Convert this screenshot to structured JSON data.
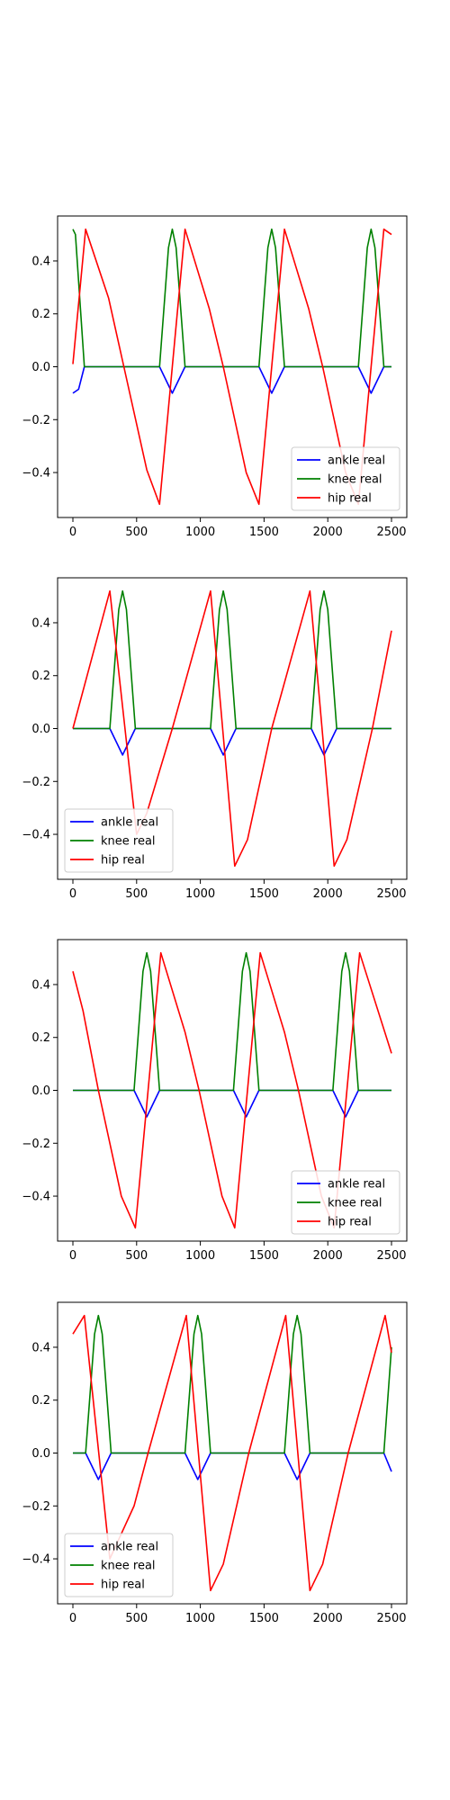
{
  "chart_data": [
    {
      "type": "line",
      "xlim": [
        -120,
        2620
      ],
      "ylim": [
        -0.57,
        0.57
      ],
      "xticks": [
        0,
        500,
        1000,
        1500,
        2000,
        2500
      ],
      "xtick_labels": [
        "0",
        "500",
        "1000",
        "1500",
        "2000",
        "2500"
      ],
      "yticks": [
        -0.4,
        -0.2,
        0.0,
        0.2,
        0.4
      ],
      "ytick_labels": [
        "−0.4",
        "−0.2",
        "0.0",
        "0.2",
        "0.4"
      ],
      "grid": false,
      "legend_loc": "lower right",
      "series": [
        {
          "name": "ankle real",
          "color": "#0000ff",
          "x": [
            0,
            45,
            90,
            680,
            720,
            780,
            840,
            880,
            1460,
            1500,
            1560,
            1620,
            1660,
            2240,
            2280,
            2340,
            2400,
            2440,
            2500
          ],
          "y": [
            -0.1,
            -0.085,
            0,
            0,
            -0.04,
            -0.1,
            -0.04,
            0,
            0,
            -0.04,
            -0.1,
            -0.04,
            0,
            0,
            -0.04,
            -0.1,
            -0.04,
            0,
            0
          ]
        },
        {
          "name": "knee real",
          "color": "#008000",
          "x": [
            0,
            20,
            90,
            680,
            750,
            780,
            810,
            880,
            1460,
            1530,
            1560,
            1590,
            1660,
            2240,
            2310,
            2340,
            2370,
            2440,
            2500
          ],
          "y": [
            0.52,
            0.5,
            0,
            0,
            0.45,
            0.52,
            0.45,
            0,
            0,
            0.45,
            0.52,
            0.45,
            0,
            0,
            0.45,
            0.52,
            0.45,
            0,
            0
          ]
        },
        {
          "name": "hip real",
          "color": "#ff0000",
          "x": [
            0,
            100,
            280,
            400,
            580,
            680,
            880,
            1070,
            1180,
            1360,
            1460,
            1660,
            1850,
            1960,
            2140,
            2240,
            2440,
            2500
          ],
          "y": [
            0.01,
            0.52,
            0.26,
            0.0,
            -0.39,
            -0.52,
            0.52,
            0.22,
            0.0,
            -0.4,
            -0.52,
            0.52,
            0.22,
            0.0,
            -0.4,
            -0.52,
            0.52,
            0.5
          ]
        }
      ]
    },
    {
      "type": "line",
      "xlim": [
        -120,
        2620
      ],
      "ylim": [
        -0.57,
        0.57
      ],
      "xticks": [
        0,
        500,
        1000,
        1500,
        2000,
        2500
      ],
      "xtick_labels": [
        "0",
        "500",
        "1000",
        "1500",
        "2000",
        "2500"
      ],
      "yticks": [
        -0.4,
        -0.2,
        0.0,
        0.2,
        0.4
      ],
      "ytick_labels": [
        "−0.4",
        "−0.2",
        "0.0",
        "0.2",
        "0.4"
      ],
      "grid": false,
      "legend_loc": "lower left",
      "series": [
        {
          "name": "ankle real",
          "color": "#0000ff",
          "x": [
            0,
            290,
            330,
            390,
            450,
            490,
            1080,
            1120,
            1180,
            1240,
            1280,
            1870,
            1910,
            1970,
            2030,
            2070,
            2500
          ],
          "y": [
            0,
            0,
            -0.04,
            -0.1,
            -0.04,
            0,
            0,
            -0.04,
            -0.1,
            -0.04,
            0,
            0,
            -0.04,
            -0.1,
            -0.04,
            0,
            0
          ]
        },
        {
          "name": "knee real",
          "color": "#008000",
          "x": [
            0,
            290,
            360,
            390,
            420,
            490,
            1080,
            1150,
            1180,
            1210,
            1280,
            1870,
            1940,
            1970,
            2000,
            2070,
            2500
          ],
          "y": [
            0,
            0,
            0.45,
            0.52,
            0.45,
            0,
            0,
            0.45,
            0.52,
            0.45,
            0,
            0,
            0.45,
            0.52,
            0.45,
            0,
            0
          ]
        },
        {
          "name": "hip real",
          "color": "#ff0000",
          "x": [
            0,
            290,
            500,
            580,
            780,
            1080,
            1270,
            1370,
            1560,
            1860,
            2050,
            2150,
            2350,
            2500
          ],
          "y": [
            0.0,
            0.52,
            -0.4,
            -0.32,
            0.0,
            0.52,
            -0.52,
            -0.42,
            0.0,
            0.52,
            -0.52,
            -0.42,
            0.0,
            0.37
          ]
        }
      ]
    },
    {
      "type": "line",
      "xlim": [
        -120,
        2620
      ],
      "ylim": [
        -0.57,
        0.57
      ],
      "xticks": [
        0,
        500,
        1000,
        1500,
        2000,
        2500
      ],
      "xtick_labels": [
        "0",
        "500",
        "1000",
        "1500",
        "2000",
        "2500"
      ],
      "yticks": [
        -0.4,
        -0.2,
        0.0,
        0.2,
        0.4
      ],
      "ytick_labels": [
        "−0.4",
        "−0.2",
        "0.0",
        "0.2",
        "0.4"
      ],
      "grid": false,
      "legend_loc": "lower right",
      "series": [
        {
          "name": "ankle real",
          "color": "#0000ff",
          "x": [
            0,
            480,
            520,
            580,
            640,
            680,
            1260,
            1300,
            1360,
            1420,
            1460,
            2040,
            2080,
            2140,
            2200,
            2240,
            2500
          ],
          "y": [
            0,
            0,
            -0.04,
            -0.1,
            -0.04,
            0,
            0,
            -0.04,
            -0.1,
            -0.04,
            0,
            0,
            -0.04,
            -0.1,
            -0.04,
            0,
            0
          ]
        },
        {
          "name": "knee real",
          "color": "#008000",
          "x": [
            0,
            480,
            550,
            580,
            610,
            680,
            1260,
            1330,
            1360,
            1390,
            1460,
            2040,
            2110,
            2140,
            2170,
            2240,
            2500
          ],
          "y": [
            0,
            0,
            0.45,
            0.52,
            0.45,
            0,
            0,
            0.45,
            0.52,
            0.45,
            0,
            0,
            0.45,
            0.52,
            0.45,
            0,
            0
          ]
        },
        {
          "name": "hip real",
          "color": "#ff0000",
          "x": [
            0,
            80,
            200,
            380,
            490,
            690,
            880,
            990,
            1170,
            1270,
            1470,
            1660,
            1770,
            1950,
            2050,
            2250,
            2500
          ],
          "y": [
            0.45,
            0.3,
            0.0,
            -0.4,
            -0.52,
            0.52,
            0.22,
            0.0,
            -0.4,
            -0.52,
            0.52,
            0.22,
            0.0,
            -0.4,
            -0.52,
            0.52,
            0.14
          ]
        }
      ]
    },
    {
      "type": "line",
      "xlim": [
        -120,
        2620
      ],
      "ylim": [
        -0.57,
        0.57
      ],
      "xticks": [
        0,
        500,
        1000,
        1500,
        2000,
        2500
      ],
      "xtick_labels": [
        "0",
        "500",
        "1000",
        "1500",
        "2000",
        "2500"
      ],
      "yticks": [
        -0.4,
        -0.2,
        0.0,
        0.2,
        0.4
      ],
      "ytick_labels": [
        "−0.4",
        "−0.2",
        "0.0",
        "0.2",
        "0.4"
      ],
      "grid": false,
      "legend_loc": "lower left",
      "series": [
        {
          "name": "ankle real",
          "color": "#0000ff",
          "x": [
            0,
            100,
            140,
            200,
            260,
            300,
            880,
            920,
            980,
            1040,
            1080,
            1660,
            1700,
            1760,
            1820,
            1860,
            2440,
            2500
          ],
          "y": [
            0,
            0,
            -0.04,
            -0.1,
            -0.04,
            0,
            0,
            -0.04,
            -0.1,
            -0.04,
            0,
            0,
            -0.04,
            -0.1,
            -0.04,
            0,
            0,
            -0.07
          ]
        },
        {
          "name": "knee real",
          "color": "#008000",
          "x": [
            0,
            100,
            170,
            200,
            230,
            300,
            880,
            950,
            980,
            1010,
            1080,
            1660,
            1730,
            1760,
            1790,
            1860,
            2440,
            2500
          ],
          "y": [
            0,
            0,
            0.45,
            0.52,
            0.45,
            0,
            0,
            0.45,
            0.52,
            0.45,
            0,
            0,
            0.45,
            0.52,
            0.45,
            0,
            0,
            0.4
          ]
        },
        {
          "name": "hip real",
          "color": "#ff0000",
          "x": [
            0,
            90,
            290,
            480,
            590,
            890,
            1080,
            1180,
            1380,
            1670,
            1860,
            1960,
            2160,
            2450,
            2500
          ],
          "y": [
            0.45,
            0.52,
            -0.4,
            -0.2,
            0.0,
            0.52,
            -0.52,
            -0.42,
            0.0,
            0.52,
            -0.52,
            -0.42,
            0.0,
            0.52,
            0.38
          ]
        }
      ]
    }
  ]
}
